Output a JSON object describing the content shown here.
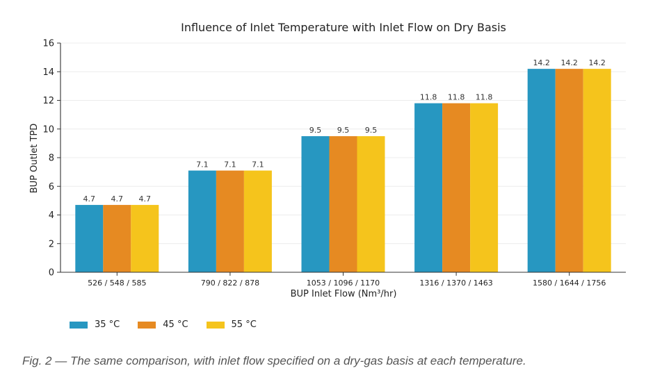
{
  "chart_data": {
    "type": "bar",
    "title": "Influence of Inlet Temperature with Inlet Flow on Dry Basis",
    "xlabel": "BUP Inlet Flow (Nm³/hr)",
    "ylabel": "BUP Outlet TPD",
    "ylim": [
      0,
      16
    ],
    "yticks": [
      0,
      2,
      4,
      6,
      8,
      10,
      12,
      14,
      16
    ],
    "categories": [
      "526 / 548 / 585",
      "790 / 822 / 878",
      "1053 / 1096 / 1170",
      "1316 / 1370 / 1463",
      "1580 / 1644 / 1756"
    ],
    "series": [
      {
        "name": "35 °C",
        "color": "#2797c1",
        "values": [
          4.7,
          7.1,
          9.5,
          11.8,
          14.2
        ]
      },
      {
        "name": "45 °C",
        "color": "#e68a22",
        "values": [
          4.7,
          7.1,
          9.5,
          11.8,
          14.2
        ]
      },
      {
        "name": "55 °C",
        "color": "#f5c41c",
        "values": [
          4.7,
          7.1,
          9.5,
          11.8,
          14.2
        ]
      }
    ],
    "data_labels": [
      "4.7",
      "7.1",
      "9.5",
      "11.8",
      "14.2"
    ],
    "grid": "horizontal",
    "legend_position": "bottom-left"
  },
  "caption": "Fig. 2 — The same comparison, with inlet flow specified on a dry-gas basis at each temperature."
}
